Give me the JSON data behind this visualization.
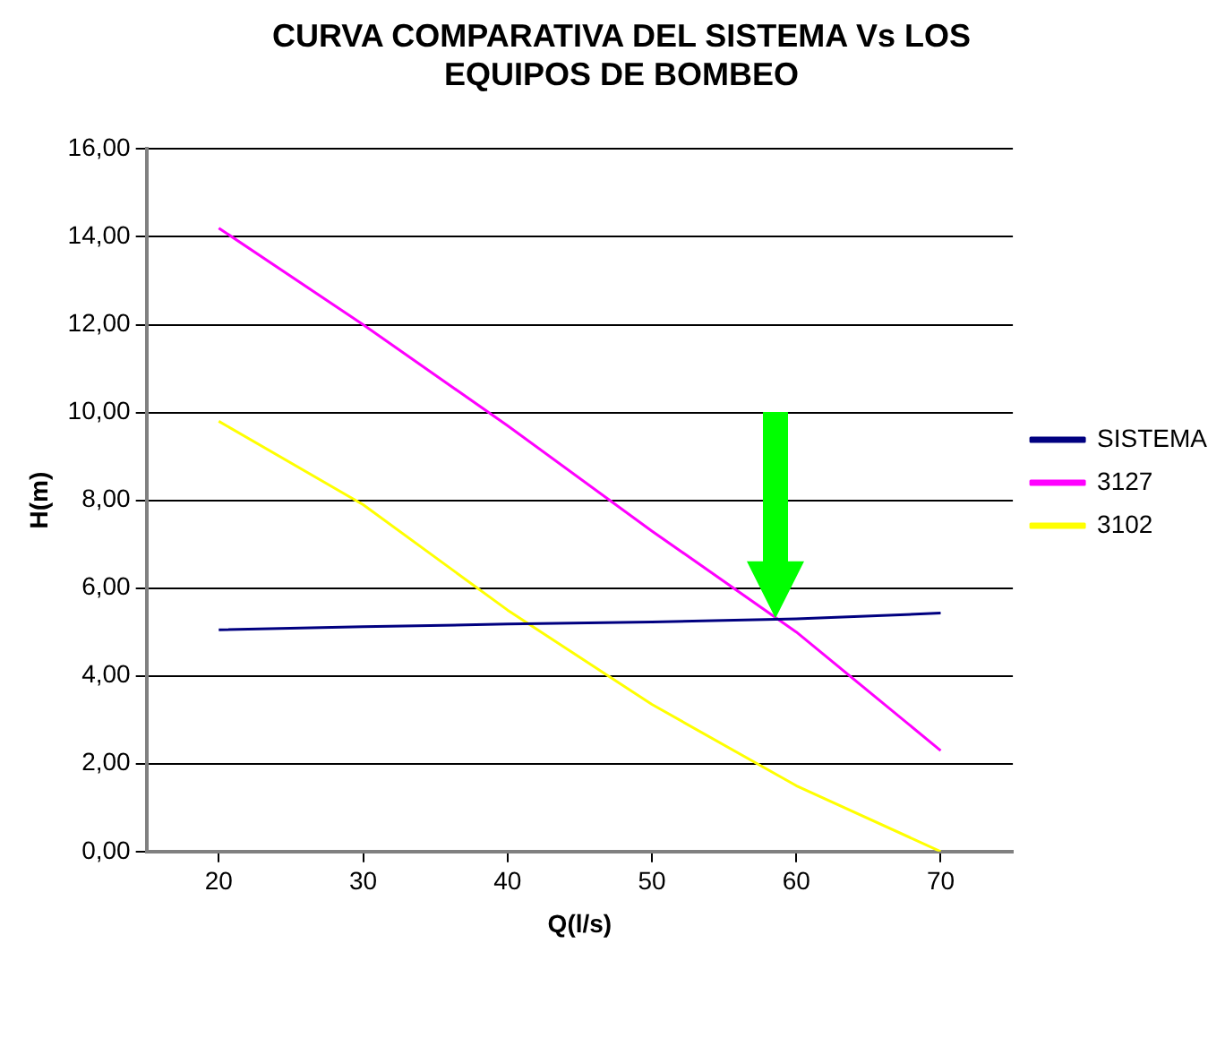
{
  "chart_data": {
    "type": "line",
    "title": "CURVA COMPARATIVA DEL SISTEMA Vs LOS EQUIPOS DE BOMBEO",
    "xlabel": "Q(l/s)",
    "ylabel": "H(m)",
    "x": [
      20,
      30,
      40,
      50,
      60,
      70
    ],
    "series": [
      {
        "name": "SISTEMA",
        "color": "#000080",
        "values": [
          5.05,
          5.12,
          5.18,
          5.23,
          5.3,
          5.43
        ]
      },
      {
        "name": "3127",
        "color": "#ff00ff",
        "values": [
          14.2,
          12.0,
          9.7,
          7.3,
          5.0,
          2.3
        ]
      },
      {
        "name": "3102",
        "color": "#ffff00",
        "values": [
          9.8,
          7.9,
          5.5,
          3.35,
          1.5,
          0
        ]
      }
    ],
    "xlim": [
      15,
      75
    ],
    "xticks": [
      20,
      30,
      40,
      50,
      60,
      70
    ],
    "ylim": [
      0,
      16
    ],
    "yticks": [
      {
        "value": 0,
        "label": "0,00"
      },
      {
        "value": 2,
        "label": "2,00"
      },
      {
        "value": 4,
        "label": "4,00"
      },
      {
        "value": 6,
        "label": "6,00"
      },
      {
        "value": 8,
        "label": "8,00"
      },
      {
        "value": 10,
        "label": "10,00"
      },
      {
        "value": 12,
        "label": "12,00"
      },
      {
        "value": 14,
        "label": "14,00"
      },
      {
        "value": 16,
        "label": "16,00"
      }
    ],
    "grid": "y",
    "legend": "right",
    "marker": "none",
    "line_style": "solid"
  }
}
